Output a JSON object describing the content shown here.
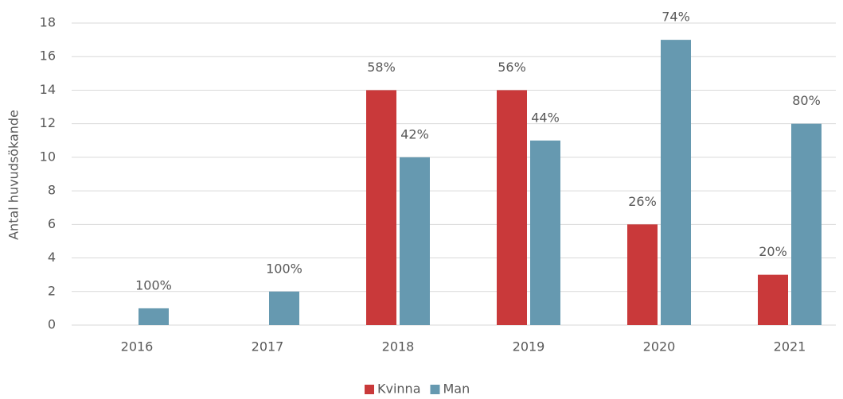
{
  "chart_data": {
    "type": "bar",
    "y_label": "Antal huvudsökande",
    "categories": [
      "2016",
      "2017",
      "2018",
      "2019",
      "2020",
      "2021"
    ],
    "series": [
      {
        "name": "Kvinna",
        "color": "#c9393a",
        "values": [
          null,
          null,
          14,
          14,
          6,
          3
        ],
        "percent_labels": [
          null,
          null,
          "58%",
          "56%",
          "26%",
          "20%"
        ]
      },
      {
        "name": "Man",
        "color": "#6699b0",
        "values": [
          1,
          2,
          10,
          11,
          17,
          12
        ],
        "percent_labels": [
          "100%",
          "100%",
          "42%",
          "44%",
          "74%",
          "80%"
        ]
      }
    ],
    "ylim": [
      0,
      18
    ],
    "yticks": [
      0,
      2,
      4,
      6,
      8,
      10,
      12,
      14,
      16,
      18
    ],
    "grid": true,
    "legend": "bottom"
  }
}
